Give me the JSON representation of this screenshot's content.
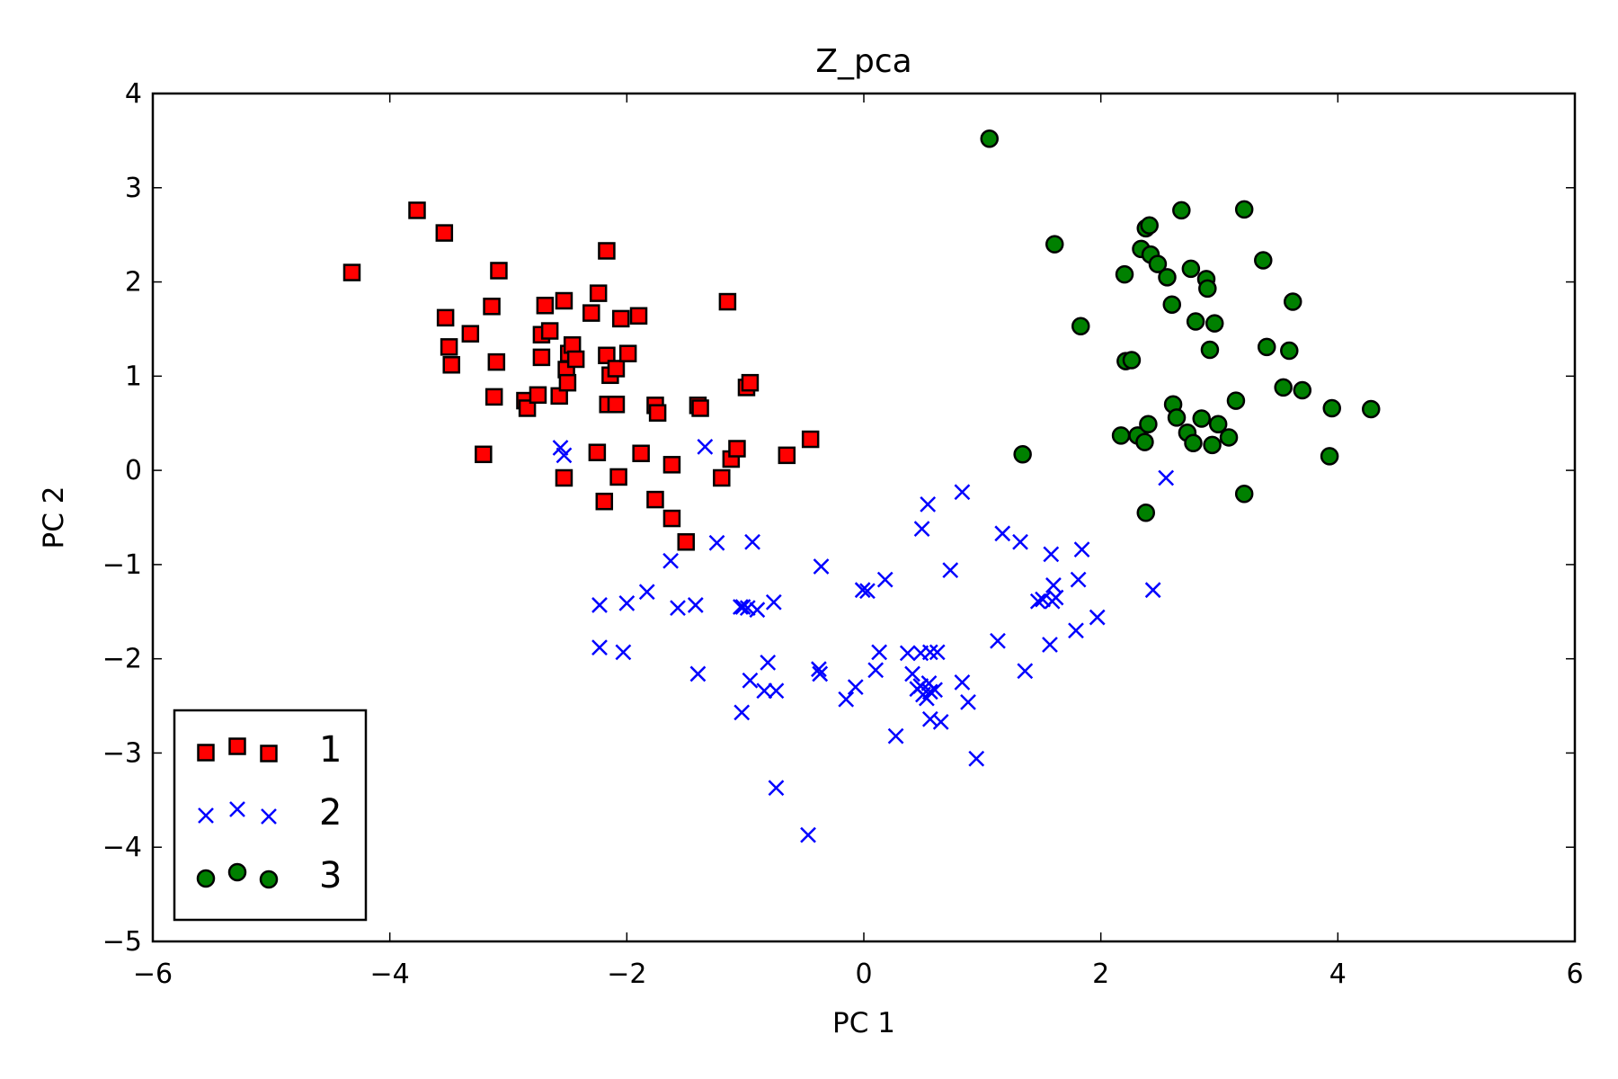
{
  "chart_data": {
    "type": "scatter",
    "title": "Z_pca",
    "xlabel": "PC 1",
    "ylabel": "PC 2",
    "xlim": [
      -6,
      6
    ],
    "ylim": [
      -5,
      4
    ],
    "xticks": [
      -6,
      -4,
      -2,
      0,
      2,
      4,
      6
    ],
    "yticks": [
      -5,
      -4,
      -3,
      -2,
      -1,
      0,
      1,
      2,
      3,
      4
    ],
    "grid": false,
    "legend_position": "lower-left",
    "series": [
      {
        "name": "1",
        "marker": "square",
        "color": "#ff0000",
        "edge_color": "#000000",
        "points": [
          [
            -4.32,
            2.1
          ],
          [
            -3.77,
            2.76
          ],
          [
            -3.54,
            2.52
          ],
          [
            -3.53,
            1.62
          ],
          [
            -3.5,
            1.31
          ],
          [
            -3.48,
            1.12
          ],
          [
            -3.32,
            1.45
          ],
          [
            -3.14,
            1.74
          ],
          [
            -3.08,
            2.12
          ],
          [
            -3.1,
            1.15
          ],
          [
            -3.12,
            0.78
          ],
          [
            -3.21,
            0.17
          ],
          [
            -2.86,
            0.74
          ],
          [
            -2.84,
            0.66
          ],
          [
            -2.75,
            0.8
          ],
          [
            -2.72,
            1.44
          ],
          [
            -2.72,
            1.2
          ],
          [
            -2.69,
            1.75
          ],
          [
            -2.65,
            1.48
          ],
          [
            -2.57,
            0.79
          ],
          [
            -2.53,
            1.8
          ],
          [
            -2.51,
            1.07
          ],
          [
            -2.5,
            0.93
          ],
          [
            -2.49,
            1.24
          ],
          [
            -2.46,
            1.33
          ],
          [
            -2.43,
            1.18
          ],
          [
            -2.53,
            -0.08
          ],
          [
            -2.25,
            0.19
          ],
          [
            -2.3,
            1.67
          ],
          [
            -2.24,
            1.88
          ],
          [
            -2.17,
            2.33
          ],
          [
            -2.17,
            1.22
          ],
          [
            -2.14,
            1.01
          ],
          [
            -2.16,
            0.7
          ],
          [
            -2.09,
            0.7
          ],
          [
            -2.09,
            1.08
          ],
          [
            -2.07,
            -0.07
          ],
          [
            -2.05,
            1.61
          ],
          [
            -1.99,
            1.24
          ],
          [
            -1.9,
            1.64
          ],
          [
            -2.19,
            -0.33
          ],
          [
            -1.88,
            0.18
          ],
          [
            -1.76,
            0.69
          ],
          [
            -1.74,
            0.61
          ],
          [
            -1.76,
            -0.31
          ],
          [
            -1.62,
            -0.51
          ],
          [
            -1.62,
            0.06
          ],
          [
            -1.5,
            -0.76
          ],
          [
            -1.4,
            0.69
          ],
          [
            -1.38,
            0.66
          ],
          [
            -1.2,
            -0.08
          ],
          [
            -1.15,
            1.79
          ],
          [
            -1.12,
            0.12
          ],
          [
            -1.07,
            0.23
          ],
          [
            -0.99,
            0.88
          ],
          [
            -0.96,
            0.93
          ],
          [
            -0.65,
            0.16
          ],
          [
            -0.45,
            0.33
          ]
        ]
      },
      {
        "name": "2",
        "marker": "x",
        "color": "#0000ff",
        "points": [
          [
            -2.56,
            0.24
          ],
          [
            -2.53,
            0.16
          ],
          [
            -2.23,
            -1.43
          ],
          [
            -2.23,
            -1.88
          ],
          [
            -2.0,
            -1.41
          ],
          [
            -2.03,
            -1.93
          ],
          [
            -1.83,
            -1.29
          ],
          [
            -1.63,
            -0.96
          ],
          [
            -1.57,
            -1.46
          ],
          [
            -1.42,
            -1.43
          ],
          [
            -1.4,
            -2.16
          ],
          [
            -1.34,
            0.25
          ],
          [
            -1.24,
            -0.77
          ],
          [
            -1.04,
            -1.45
          ],
          [
            -1.02,
            -1.45
          ],
          [
            -0.98,
            -1.46
          ],
          [
            -0.94,
            -0.76
          ],
          [
            -0.9,
            -1.48
          ],
          [
            -1.03,
            -2.57
          ],
          [
            -0.96,
            -2.23
          ],
          [
            -0.84,
            -2.34
          ],
          [
            -0.81,
            -2.04
          ],
          [
            -0.76,
            -1.4
          ],
          [
            -0.74,
            -2.34
          ],
          [
            -0.74,
            -3.37
          ],
          [
            -0.47,
            -3.87
          ],
          [
            -0.38,
            -2.11
          ],
          [
            -0.37,
            -2.16
          ],
          [
            -0.36,
            -1.02
          ],
          [
            -0.15,
            -2.43
          ],
          [
            -0.07,
            -2.3
          ],
          [
            -0.01,
            -1.27
          ],
          [
            0.03,
            -1.28
          ],
          [
            0.1,
            -2.12
          ],
          [
            0.13,
            -1.93
          ],
          [
            0.18,
            -1.16
          ],
          [
            0.27,
            -2.82
          ],
          [
            0.37,
            -1.94
          ],
          [
            0.41,
            -2.16
          ],
          [
            0.45,
            -2.32
          ],
          [
            0.48,
            -2.29
          ],
          [
            0.48,
            -1.94
          ],
          [
            0.49,
            -0.62
          ],
          [
            0.5,
            -2.38
          ],
          [
            0.53,
            -2.42
          ],
          [
            0.55,
            -2.26
          ],
          [
            0.56,
            -2.35
          ],
          [
            0.56,
            -1.93
          ],
          [
            0.54,
            -0.36
          ],
          [
            0.56,
            -2.64
          ],
          [
            0.6,
            -2.33
          ],
          [
            0.65,
            -2.67
          ],
          [
            0.62,
            -1.93
          ],
          [
            0.73,
            -1.06
          ],
          [
            0.83,
            -2.25
          ],
          [
            0.83,
            -0.23
          ],
          [
            0.88,
            -2.46
          ],
          [
            0.95,
            -3.06
          ],
          [
            1.13,
            -1.81
          ],
          [
            1.17,
            -0.67
          ],
          [
            1.32,
            -0.76
          ],
          [
            1.36,
            -2.13
          ],
          [
            1.47,
            -1.39
          ],
          [
            1.51,
            -1.37
          ],
          [
            1.57,
            -1.85
          ],
          [
            1.58,
            -0.89
          ],
          [
            1.59,
            -1.39
          ],
          [
            1.6,
            -1.22
          ],
          [
            1.62,
            -1.35
          ],
          [
            1.79,
            -1.7
          ],
          [
            1.81,
            -1.16
          ],
          [
            1.84,
            -0.84
          ],
          [
            1.97,
            -1.56
          ],
          [
            2.44,
            -1.27
          ],
          [
            2.55,
            -0.08
          ]
        ]
      },
      {
        "name": "3",
        "marker": "circle",
        "color": "#008000",
        "edge_color": "#000000",
        "points": [
          [
            1.06,
            3.52
          ],
          [
            1.34,
            0.17
          ],
          [
            1.61,
            2.4
          ],
          [
            1.83,
            1.53
          ],
          [
            2.17,
            0.37
          ],
          [
            2.2,
            2.08
          ],
          [
            2.21,
            1.16
          ],
          [
            2.26,
            1.17
          ],
          [
            2.31,
            0.37
          ],
          [
            2.34,
            2.35
          ],
          [
            2.37,
            0.3
          ],
          [
            2.38,
            2.57
          ],
          [
            2.38,
            -0.45
          ],
          [
            2.4,
            0.49
          ],
          [
            2.41,
            2.6
          ],
          [
            2.42,
            2.29
          ],
          [
            2.48,
            2.19
          ],
          [
            2.56,
            2.05
          ],
          [
            2.6,
            1.76
          ],
          [
            2.61,
            0.7
          ],
          [
            2.64,
            0.56
          ],
          [
            2.68,
            2.76
          ],
          [
            2.73,
            0.4
          ],
          [
            2.76,
            2.14
          ],
          [
            2.78,
            0.29
          ],
          [
            2.8,
            1.58
          ],
          [
            2.85,
            0.55
          ],
          [
            2.89,
            2.03
          ],
          [
            2.9,
            1.93
          ],
          [
            2.92,
            1.28
          ],
          [
            2.94,
            0.27
          ],
          [
            2.96,
            1.56
          ],
          [
            2.99,
            0.49
          ],
          [
            3.08,
            0.35
          ],
          [
            3.14,
            0.74
          ],
          [
            3.21,
            2.77
          ],
          [
            3.21,
            -0.25
          ],
          [
            3.37,
            2.23
          ],
          [
            3.4,
            1.31
          ],
          [
            3.54,
            0.88
          ],
          [
            3.59,
            1.27
          ],
          [
            3.62,
            1.79
          ],
          [
            3.7,
            0.85
          ],
          [
            3.93,
            0.15
          ],
          [
            3.95,
            0.66
          ],
          [
            4.28,
            0.65
          ]
        ]
      }
    ]
  }
}
